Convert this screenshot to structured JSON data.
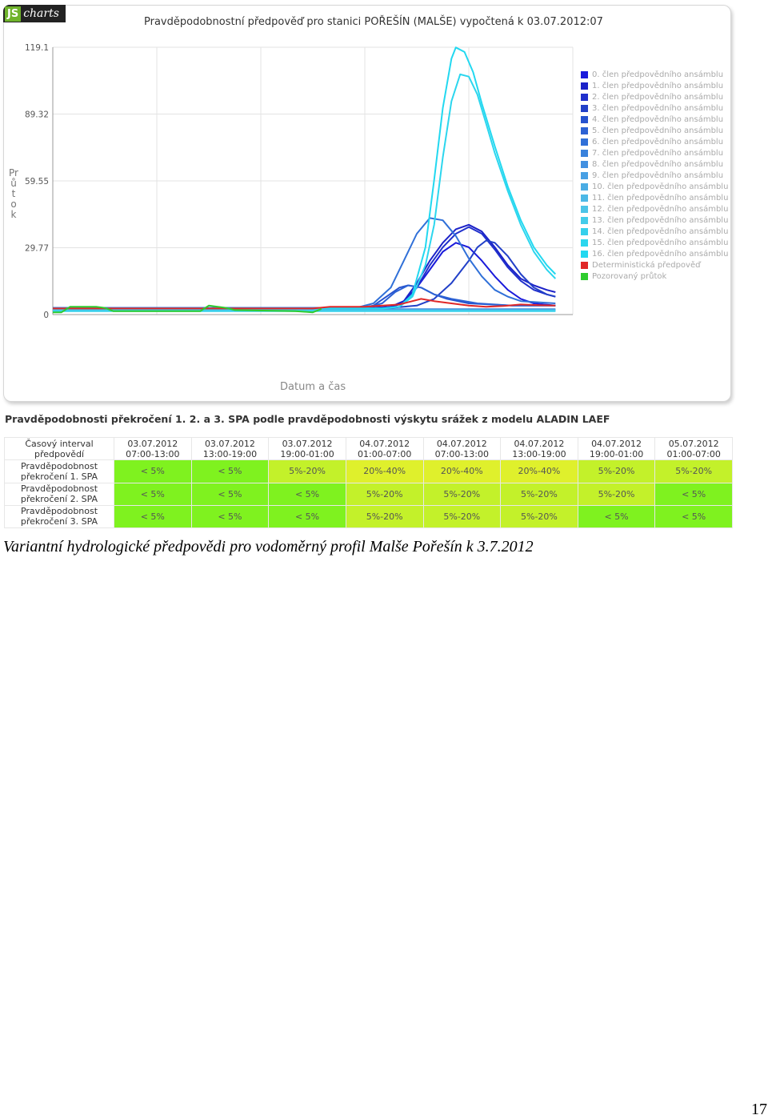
{
  "logo": {
    "js": "JS",
    "charts": "charts"
  },
  "chart_data": {
    "type": "line",
    "title": "Pravděpodobnostní předpověď pro stanici POŘEŠÍN (MALŠE) vypočtená k 03.07.2012:07",
    "xlabel": "Datum a čas",
    "ylabel": "Průtok",
    "ylim": [
      0,
      119.1
    ],
    "y_ticks": [
      "0",
      "29.77",
      "59.55",
      "89.32",
      "119.1"
    ],
    "x_range_hours": [
      0,
      120
    ],
    "grid": true,
    "legend_position": "right",
    "series": [
      {
        "name": "0. člen předpovědního ansámblu",
        "color": "#1a1adb",
        "points": [
          [
            0,
            2.7
          ],
          [
            70,
            2.7
          ],
          [
            74,
            3
          ],
          [
            78,
            3.5
          ],
          [
            81,
            6
          ],
          [
            84,
            12
          ],
          [
            87,
            20
          ],
          [
            90,
            28
          ],
          [
            93,
            32
          ],
          [
            96,
            30
          ],
          [
            99,
            24
          ],
          [
            102,
            17
          ],
          [
            105,
            11
          ],
          [
            108,
            7
          ],
          [
            111,
            5
          ],
          [
            116,
            4
          ]
        ]
      },
      {
        "name": "1. člen předpovědního ansámblu",
        "color": "#1c22c8",
        "points": [
          [
            0,
            2.7
          ],
          [
            70,
            2.7
          ],
          [
            74,
            3
          ],
          [
            78,
            3.5
          ],
          [
            81,
            6
          ],
          [
            84,
            14
          ],
          [
            87,
            24
          ],
          [
            90,
            32
          ],
          [
            93,
            38
          ],
          [
            96,
            40
          ],
          [
            99,
            37
          ],
          [
            102,
            30
          ],
          [
            105,
            22
          ],
          [
            108,
            16
          ],
          [
            111,
            13
          ],
          [
            114,
            11
          ],
          [
            116,
            10
          ]
        ]
      },
      {
        "name": "2. člen předpovědního ansámblu",
        "color": "#2030cc",
        "points": [
          [
            0,
            2.7
          ],
          [
            70,
            2.7
          ],
          [
            74,
            3
          ],
          [
            78,
            3.5
          ],
          [
            81,
            5
          ],
          [
            84,
            12
          ],
          [
            87,
            22
          ],
          [
            90,
            30
          ],
          [
            93,
            36
          ],
          [
            96,
            39
          ],
          [
            99,
            36
          ],
          [
            102,
            29
          ],
          [
            105,
            21
          ],
          [
            108,
            15
          ],
          [
            111,
            11
          ],
          [
            114,
            9
          ],
          [
            116,
            8
          ]
        ]
      },
      {
        "name": "3. člen předpovědního ansámblu",
        "color": "#2240c8",
        "points": [
          [
            0,
            2.7
          ],
          [
            72,
            2.7
          ],
          [
            78,
            3
          ],
          [
            84,
            4
          ],
          [
            88,
            7
          ],
          [
            92,
            14
          ],
          [
            96,
            24
          ],
          [
            98,
            30
          ],
          [
            100,
            33
          ],
          [
            102,
            32
          ],
          [
            105,
            26
          ],
          [
            108,
            18
          ],
          [
            111,
            12
          ],
          [
            114,
            9
          ],
          [
            116,
            8
          ]
        ]
      },
      {
        "name": "4. člen předpovědního ansámblu",
        "color": "#2652cf",
        "points": [
          [
            0,
            2.7
          ],
          [
            70,
            2.7
          ],
          [
            74,
            4
          ],
          [
            77,
            8
          ],
          [
            80,
            12
          ],
          [
            82,
            13
          ],
          [
            85,
            12
          ],
          [
            88,
            9
          ],
          [
            91,
            7
          ],
          [
            96,
            5
          ],
          [
            106,
            4
          ],
          [
            116,
            4
          ]
        ]
      },
      {
        "name": "5. člen předpovědního ansámblu",
        "color": "#2c62d4",
        "points": [
          [
            0,
            3
          ],
          [
            72,
            3
          ],
          [
            76,
            5
          ],
          [
            79,
            10
          ],
          [
            82,
            13
          ],
          [
            85,
            12
          ],
          [
            88,
            9
          ],
          [
            92,
            7
          ],
          [
            98,
            5
          ],
          [
            106,
            4
          ],
          [
            116,
            4
          ]
        ]
      },
      {
        "name": "6. člen předpovědního ansámblu",
        "color": "#3070d8",
        "points": [
          [
            0,
            3
          ],
          [
            70,
            3
          ],
          [
            74,
            5
          ],
          [
            78,
            12
          ],
          [
            81,
            24
          ],
          [
            84,
            36
          ],
          [
            87,
            43
          ],
          [
            90,
            42
          ],
          [
            93,
            35
          ],
          [
            96,
            25
          ],
          [
            99,
            17
          ],
          [
            102,
            11
          ],
          [
            105,
            8
          ],
          [
            108,
            6
          ],
          [
            116,
            5
          ]
        ]
      },
      {
        "name": "7. člen předpovědního ansámblu",
        "color": "#3a82dc",
        "points": [
          [
            0,
            2.4
          ],
          [
            116,
            2.4
          ]
        ]
      },
      {
        "name": "8. člen předpovědního ansámblu",
        "color": "#4290e0",
        "points": [
          [
            0,
            2.2
          ],
          [
            116,
            2.2
          ]
        ]
      },
      {
        "name": "9. člen předpovědního ansámblu",
        "color": "#48a0e4",
        "points": [
          [
            0,
            2
          ],
          [
            116,
            2
          ]
        ]
      },
      {
        "name": "10. člen předpovědního ansámblu",
        "color": "#4aace4",
        "points": [
          [
            0,
            2
          ],
          [
            116,
            2
          ]
        ]
      },
      {
        "name": "11. člen předpovědního ansámblu",
        "color": "#4cb8e6",
        "points": [
          [
            0,
            1.8
          ],
          [
            116,
            1.8
          ]
        ]
      },
      {
        "name": "12. člen předpovědního ansámblu",
        "color": "#4cc4e8",
        "points": [
          [
            0,
            1.8
          ],
          [
            116,
            1.8
          ]
        ]
      },
      {
        "name": "13. člen předpovědního ansámblu",
        "color": "#44ccea",
        "points": [
          [
            0,
            1.6
          ],
          [
            116,
            1.6
          ]
        ]
      },
      {
        "name": "14. člen předpovědního ansámblu",
        "color": "#36d0ec",
        "points": [
          [
            0,
            1.5
          ],
          [
            116,
            1.5
          ]
        ]
      },
      {
        "name": "15. člen předpovědního ansámblu",
        "color": "#2cd6ee",
        "points": [
          [
            0,
            2.7
          ],
          [
            76,
            2.7
          ],
          [
            80,
            3.5
          ],
          [
            83,
            8
          ],
          [
            86,
            22
          ],
          [
            88,
            40
          ],
          [
            90,
            70
          ],
          [
            92,
            95
          ],
          [
            94,
            107
          ],
          [
            96,
            106
          ],
          [
            98,
            98
          ],
          [
            100,
            85
          ],
          [
            102,
            72
          ],
          [
            105,
            55
          ],
          [
            108,
            40
          ],
          [
            111,
            28
          ],
          [
            114,
            20
          ],
          [
            116,
            16
          ]
        ]
      },
      {
        "name": "16. člen předpovědního ansámblu",
        "color": "#22d8f0",
        "points": [
          [
            0,
            2.7
          ],
          [
            76,
            2.7
          ],
          [
            80,
            3.5
          ],
          [
            83,
            9
          ],
          [
            86,
            30
          ],
          [
            88,
            60
          ],
          [
            90,
            92
          ],
          [
            92,
            114
          ],
          [
            93,
            119
          ],
          [
            95,
            117
          ],
          [
            97,
            108
          ],
          [
            99,
            94
          ],
          [
            102,
            75
          ],
          [
            105,
            57
          ],
          [
            108,
            42
          ],
          [
            111,
            30
          ],
          [
            114,
            22
          ],
          [
            116,
            18
          ]
        ]
      },
      {
        "name": "Deterministická předpověď",
        "color": "#e02828",
        "points": [
          [
            0,
            2.7
          ],
          [
            60,
            2.7
          ],
          [
            64,
            3.5
          ],
          [
            72,
            3.5
          ],
          [
            80,
            4.5
          ],
          [
            85,
            7
          ],
          [
            88,
            6
          ],
          [
            92,
            5
          ],
          [
            96,
            4
          ],
          [
            100,
            3.5
          ],
          [
            104,
            3.8
          ],
          [
            108,
            4.5
          ],
          [
            112,
            4.2
          ],
          [
            116,
            4
          ]
        ]
      },
      {
        "name": "Pozorovaný průtok",
        "color": "#2ecc2e",
        "points": [
          [
            0,
            1
          ],
          [
            2,
            1
          ],
          [
            4,
            3.5
          ],
          [
            10,
            3.5
          ],
          [
            12,
            3
          ],
          [
            14,
            1.5
          ],
          [
            34,
            1.5
          ],
          [
            36,
            4
          ],
          [
            40,
            3
          ],
          [
            42,
            2
          ],
          [
            56,
            1.5
          ],
          [
            60,
            1
          ],
          [
            62,
            2.5
          ]
        ]
      }
    ]
  },
  "table": {
    "title": "Pravděpodobnosti překročení 1. 2. a 3. SPA podle pravděpodobnosti výskytu srážek z modelu ALADIN LAEF",
    "header_label": [
      "Časový interval",
      "předpovědí"
    ],
    "columns": [
      [
        "03.07.2012",
        "07:00-13:00"
      ],
      [
        "03.07.2012",
        "13:00-19:00"
      ],
      [
        "03.07.2012",
        "19:00-01:00"
      ],
      [
        "04.07.2012",
        "01:00-07:00"
      ],
      [
        "04.07.2012",
        "07:00-13:00"
      ],
      [
        "04.07.2012",
        "13:00-19:00"
      ],
      [
        "04.07.2012",
        "19:00-01:00"
      ],
      [
        "05.07.2012",
        "01:00-07:00"
      ]
    ],
    "rows": [
      {
        "label": [
          "Pravděpodobnost",
          "překročení 1. SPA"
        ],
        "values": [
          "< 5%",
          "< 5%",
          "5%-20%",
          "20%-40%",
          "20%-40%",
          "20%-40%",
          "5%-20%",
          "5%-20%"
        ]
      },
      {
        "label": [
          "Pravděpodobnost",
          "překročení 2. SPA"
        ],
        "values": [
          "< 5%",
          "< 5%",
          "< 5%",
          "5%-20%",
          "5%-20%",
          "5%-20%",
          "5%-20%",
          "< 5%"
        ]
      },
      {
        "label": [
          "Pravděpodobnost",
          "překročení 3. SPA"
        ],
        "values": [
          "< 5%",
          "< 5%",
          "< 5%",
          "5%-20%",
          "5%-20%",
          "5%-20%",
          "< 5%",
          "< 5%"
        ]
      }
    ],
    "level_colors": {
      "< 5%": "#7ff21f",
      "5%-20%": "#c3f12a",
      "20%-40%": "#dff02c"
    }
  },
  "caption": "Variantní hydrologické předpovědi pro vodoměrný profil Malše Pořešín k 3.7.2012",
  "page_number": "17"
}
